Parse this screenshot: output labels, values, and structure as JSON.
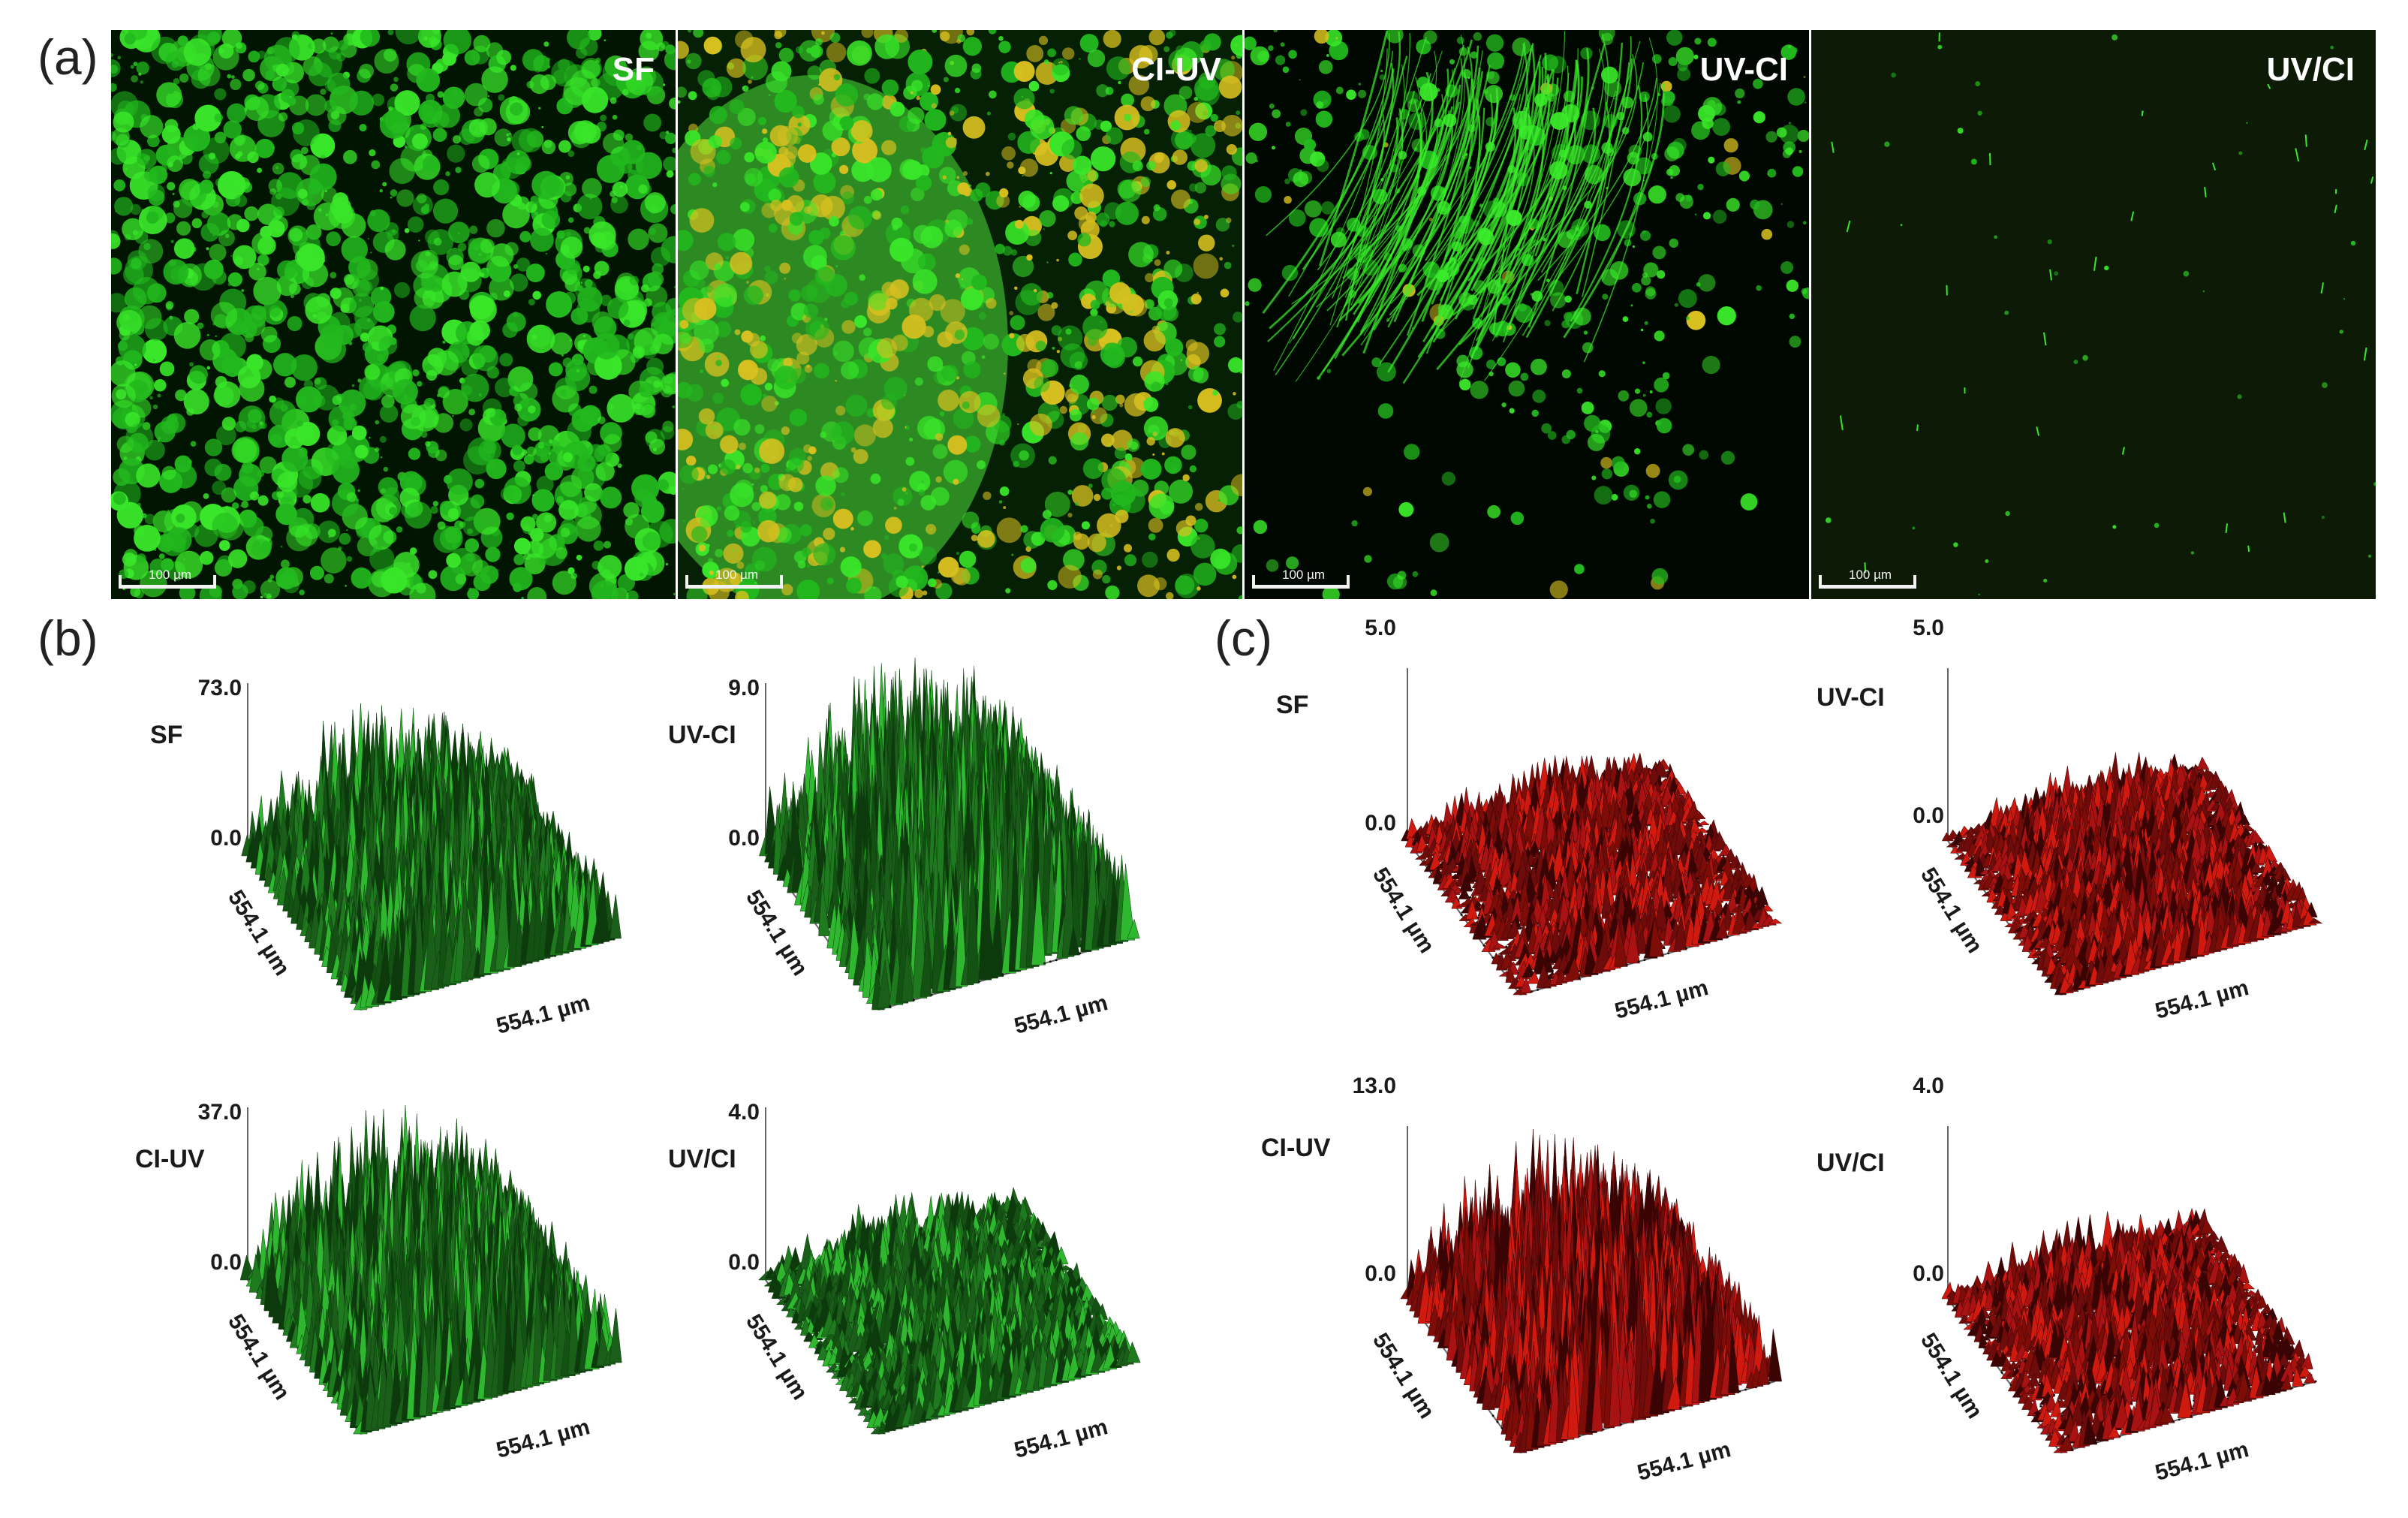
{
  "panels": {
    "a": "(a)",
    "b": "(b)",
    "c": "(c)"
  },
  "micrographs": [
    {
      "label": "SF",
      "scale": "100 µm"
    },
    {
      "label": "CI-UV",
      "scale": "100 µm"
    },
    {
      "label": "UV-CI",
      "scale": "100 µm"
    },
    {
      "label": "UV/CI",
      "scale": "100 µm"
    }
  ],
  "plots_b": [
    {
      "cond": "SF",
      "zmax": "73.0",
      "zmin": "0.0",
      "xlab": "554.1 µm",
      "ylab": "554.1 µm"
    },
    {
      "cond": "UV-CI",
      "zmax": "9.0",
      "zmin": "0.0",
      "xlab": "554.1 µm",
      "ylab": "554.1 µm"
    },
    {
      "cond": "CI-UV",
      "zmax": "37.0",
      "zmin": "0.0",
      "xlab": "554.1 µm",
      "ylab": "554.1 µm"
    },
    {
      "cond": "UV/CI",
      "zmax": "4.0",
      "zmin": "0.0",
      "xlab": "554.1 µm",
      "ylab": "554.1 µm"
    }
  ],
  "plots_c": [
    {
      "cond": "SF",
      "zmax": "5.0",
      "zmin": "0.0",
      "xlab": "554.1 µm",
      "ylab": "554.1 µm"
    },
    {
      "cond": "UV-CI",
      "zmax": "5.0",
      "zmin": "0.0",
      "xlab": "554.1 µm",
      "ylab": "554.1 µm"
    },
    {
      "cond": "CI-UV",
      "zmax": "13.0",
      "zmin": "0.0",
      "xlab": "554.1 µm",
      "ylab": "554.1 µm"
    },
    {
      "cond": "UV/CI",
      "zmax": "4.0",
      "zmin": "0.0",
      "xlab": "554.1 µm",
      "ylab": "554.1 µm"
    }
  ],
  "colors": {
    "live_stain": "#39e629",
    "dead_stain": "#d8c020",
    "green_surface_dark": "#0c3a0c",
    "green_surface_light": "#2fb82f",
    "red_surface_dark": "#3a0404",
    "red_surface_light": "#d01a10"
  }
}
